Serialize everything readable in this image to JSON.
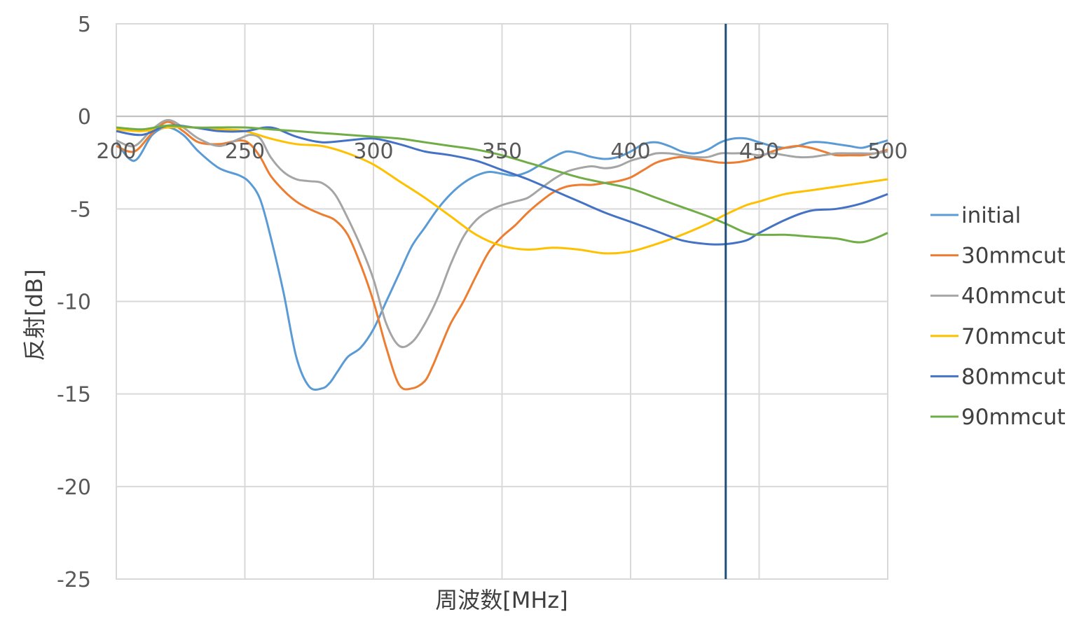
{
  "chart_data": {
    "type": "line",
    "xlabel": "周波数[MHz]",
    "ylabel": "反射[dB]",
    "xlim": [
      200,
      500
    ],
    "ylim": [
      -25,
      5
    ],
    "xticks": [
      "200",
      "250",
      "300",
      "350",
      "400",
      "450",
      "500"
    ],
    "yticks": [
      "5",
      "0",
      "-5",
      "-10",
      "-15",
      "-20",
      "-25"
    ],
    "grid": true,
    "legend_position": "right",
    "marker_line_x": 437,
    "marker_line_color": "#1f4e79",
    "series": [
      {
        "name": "initial",
        "color": "#5b9bd5",
        "x": [
          200,
          207,
          214,
          220,
          226,
          232,
          240,
          248,
          252,
          256,
          260,
          265,
          270,
          275,
          280,
          283,
          286,
          290,
          295,
          300,
          305,
          310,
          315,
          320,
          325,
          330,
          335,
          340,
          345,
          350,
          355,
          360,
          365,
          370,
          375,
          380,
          385,
          390,
          395,
          400,
          405,
          410,
          415,
          420,
          425,
          430,
          435,
          440,
          445,
          450,
          455,
          460,
          465,
          470,
          475,
          480,
          485,
          490,
          495,
          500
        ],
        "y": [
          -1.4,
          -2.4,
          -1.0,
          -0.6,
          -1.0,
          -1.9,
          -2.8,
          -3.2,
          -3.6,
          -4.5,
          -6.5,
          -9.5,
          -13.0,
          -14.6,
          -14.7,
          -14.4,
          -13.8,
          -13.0,
          -12.5,
          -11.5,
          -10.0,
          -8.5,
          -7.0,
          -6.0,
          -5.0,
          -4.2,
          -3.6,
          -3.2,
          -3.0,
          -3.1,
          -3.2,
          -3.0,
          -2.6,
          -2.2,
          -1.9,
          -2.0,
          -2.2,
          -2.3,
          -2.2,
          -1.9,
          -1.5,
          -1.4,
          -1.6,
          -1.9,
          -2.0,
          -1.8,
          -1.4,
          -1.2,
          -1.2,
          -1.4,
          -1.6,
          -1.7,
          -1.6,
          -1.4,
          -1.4,
          -1.5,
          -1.6,
          -1.7,
          -1.5,
          -1.3
        ]
      },
      {
        "name": "30mmcut",
        "color": "#ed7d31",
        "x": [
          200,
          207,
          214,
          220,
          226,
          232,
          240,
          248,
          252,
          256,
          260,
          265,
          270,
          275,
          280,
          285,
          290,
          295,
          300,
          305,
          310,
          315,
          320,
          323,
          326,
          330,
          335,
          340,
          345,
          350,
          355,
          360,
          365,
          370,
          375,
          380,
          385,
          390,
          395,
          400,
          405,
          410,
          415,
          420,
          425,
          430,
          435,
          440,
          445,
          450,
          455,
          460,
          465,
          470,
          475,
          480,
          485,
          490,
          495,
          500
        ],
        "y": [
          -1.6,
          -1.9,
          -0.9,
          -0.3,
          -0.8,
          -1.4,
          -1.5,
          -1.3,
          -1.5,
          -2.2,
          -3.2,
          -4.0,
          -4.6,
          -5.0,
          -5.3,
          -5.6,
          -6.4,
          -8.0,
          -10.0,
          -12.5,
          -14.5,
          -14.7,
          -14.3,
          -13.5,
          -12.5,
          -11.2,
          -10.0,
          -8.6,
          -7.3,
          -6.5,
          -5.9,
          -5.2,
          -4.6,
          -4.1,
          -3.8,
          -3.7,
          -3.7,
          -3.6,
          -3.5,
          -3.3,
          -2.9,
          -2.5,
          -2.3,
          -2.2,
          -2.3,
          -2.4,
          -2.5,
          -2.5,
          -2.4,
          -2.2,
          -1.9,
          -1.7,
          -1.6,
          -1.7,
          -1.9,
          -2.1,
          -2.1,
          -2.1,
          -2.0,
          -1.8
        ]
      },
      {
        "name": "40mmcut",
        "color": "#a5a5a5",
        "x": [
          200,
          207,
          214,
          220,
          226,
          232,
          240,
          248,
          252,
          256,
          260,
          265,
          270,
          275,
          280,
          285,
          290,
          295,
          300,
          305,
          310,
          315,
          320,
          325,
          330,
          335,
          340,
          345,
          350,
          355,
          360,
          365,
          370,
          375,
          380,
          385,
          390,
          395,
          400,
          405,
          410,
          415,
          420,
          425,
          430,
          435,
          440,
          445,
          450,
          455,
          460,
          465,
          470,
          475,
          480,
          485,
          490,
          495,
          500
        ],
        "y": [
          -1.3,
          -1.6,
          -0.7,
          -0.2,
          -0.6,
          -1.2,
          -1.6,
          -1.2,
          -1.0,
          -1.2,
          -2.2,
          -3.0,
          -3.4,
          -3.5,
          -3.6,
          -4.2,
          -5.5,
          -7.0,
          -8.8,
          -11.2,
          -12.4,
          -12.2,
          -11.2,
          -9.8,
          -8.0,
          -6.5,
          -5.6,
          -5.1,
          -4.8,
          -4.6,
          -4.4,
          -3.9,
          -3.4,
          -3.0,
          -2.8,
          -2.7,
          -2.8,
          -2.7,
          -2.4,
          -2.2,
          -2.0,
          -2.0,
          -2.1,
          -2.2,
          -2.2,
          -2.0,
          -2.0,
          -2.0,
          -2.1,
          -2.0,
          -2.1,
          -2.2,
          -2.2,
          -2.1,
          -2.0,
          -2.0,
          -2.0,
          -2.0,
          -1.9
        ]
      },
      {
        "name": "70mmcut",
        "color": "#ffc000",
        "x": [
          200,
          210,
          220,
          230,
          240,
          250,
          260,
          270,
          280,
          290,
          300,
          310,
          320,
          330,
          340,
          350,
          360,
          370,
          380,
          390,
          400,
          410,
          420,
          430,
          437,
          445,
          450,
          460,
          470,
          480,
          490,
          500
        ],
        "y": [
          -0.7,
          -0.8,
          -0.6,
          -0.6,
          -0.7,
          -0.8,
          -1.2,
          -1.5,
          -1.6,
          -2.0,
          -2.6,
          -3.5,
          -4.4,
          -5.4,
          -6.4,
          -7.0,
          -7.2,
          -7.1,
          -7.2,
          -7.4,
          -7.3,
          -6.9,
          -6.4,
          -5.8,
          -5.3,
          -4.8,
          -4.6,
          -4.2,
          -4.0,
          -3.8,
          -3.6,
          -3.4
        ]
      },
      {
        "name": "80mmcut",
        "color": "#4472c4",
        "x": [
          200,
          210,
          220,
          230,
          240,
          250,
          260,
          270,
          280,
          290,
          300,
          310,
          320,
          330,
          340,
          350,
          360,
          370,
          380,
          390,
          400,
          410,
          420,
          430,
          437,
          445,
          450,
          460,
          470,
          480,
          490,
          500
        ],
        "y": [
          -0.8,
          -1.0,
          -0.5,
          -0.6,
          -0.8,
          -0.8,
          -0.6,
          -1.1,
          -1.4,
          -1.3,
          -1.2,
          -1.5,
          -1.9,
          -2.1,
          -2.4,
          -2.9,
          -3.4,
          -4.0,
          -4.6,
          -5.2,
          -5.7,
          -6.2,
          -6.7,
          -6.9,
          -6.9,
          -6.7,
          -6.3,
          -5.6,
          -5.1,
          -5.0,
          -4.7,
          -4.2
        ]
      },
      {
        "name": "90mmcut",
        "color": "#70ad47",
        "x": [
          200,
          210,
          220,
          230,
          240,
          250,
          260,
          270,
          280,
          290,
          300,
          310,
          320,
          330,
          340,
          350,
          360,
          370,
          380,
          390,
          400,
          410,
          420,
          430,
          437,
          445,
          450,
          460,
          470,
          480,
          490,
          500
        ],
        "y": [
          -0.6,
          -0.7,
          -0.5,
          -0.6,
          -0.6,
          -0.6,
          -0.7,
          -0.8,
          -0.9,
          -1.0,
          -1.1,
          -1.2,
          -1.4,
          -1.6,
          -1.8,
          -2.1,
          -2.5,
          -2.9,
          -3.3,
          -3.6,
          -3.9,
          -4.4,
          -4.9,
          -5.4,
          -5.8,
          -6.3,
          -6.4,
          -6.4,
          -6.5,
          -6.6,
          -6.8,
          -6.3
        ]
      }
    ]
  }
}
